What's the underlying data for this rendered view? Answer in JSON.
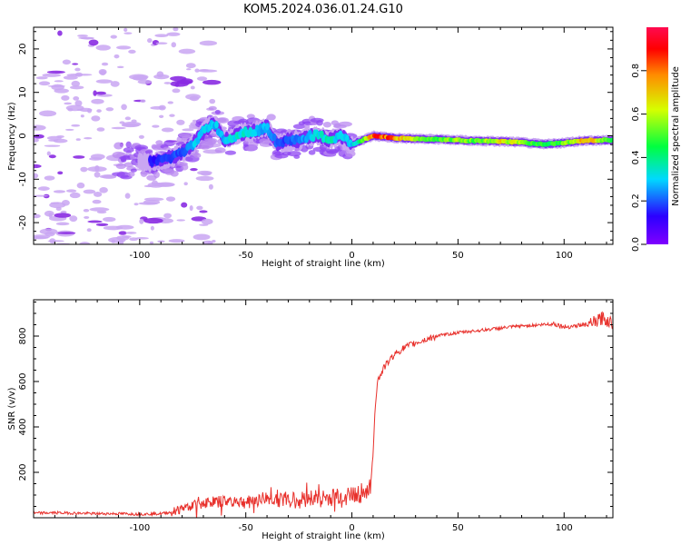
{
  "title": "KOM5.2024.036.01.24.G10",
  "chart_data": [
    {
      "type": "heatmap",
      "xlabel": "Height of straight line (km)",
      "ylabel": "Frequency (Hz)",
      "xlim": [
        -150,
        123
      ],
      "ylim": [
        -25,
        25
      ],
      "x_ticks": [
        -100,
        -50,
        0,
        50,
        100
      ],
      "y_ticks": [
        -20,
        -10,
        0,
        10,
        20
      ],
      "colorbar": {
        "label": "Normalized spectral amplitude",
        "range": [
          0,
          1
        ],
        "ticks": [
          0.0,
          0.2,
          0.4,
          0.6,
          0.8
        ],
        "colormap": "gist_rainbow_r"
      },
      "ridge": {
        "x": [
          -95,
          -85,
          -80,
          -75,
          -70,
          -65,
          -60,
          -55,
          -50,
          -45,
          -40,
          -35,
          -30,
          -25,
          -20,
          -15,
          -10,
          -5,
          0,
          5,
          10,
          20,
          30,
          40,
          50,
          60,
          70,
          80,
          90,
          100,
          110,
          123
        ],
        "y": [
          -6,
          -5,
          -4,
          -2,
          1,
          3,
          -1,
          0,
          1,
          1,
          2,
          -2,
          -1,
          -1,
          0,
          0,
          -1,
          0,
          -2,
          -1,
          0,
          -0.5,
          -0.7,
          -0.8,
          -1,
          -1.2,
          -1.3,
          -1.5,
          -2,
          -1.6,
          -1.1,
          -1
        ]
      },
      "ridge_amplitude": [
        0.15,
        0.2,
        0.2,
        0.3,
        0.35,
        0.3,
        0.3,
        0.35,
        0.35,
        0.3,
        0.3,
        0.2,
        0.2,
        0.25,
        0.3,
        0.35,
        0.4,
        0.3,
        0.3,
        0.5,
        0.9,
        0.85,
        0.6,
        0.55,
        0.6,
        0.55,
        0.7,
        0.6,
        0.5,
        0.55,
        0.8,
        0.5
      ]
    },
    {
      "type": "line",
      "xlabel": "Height of straight line (km)",
      "ylabel": "SNR (v/v)",
      "xlim": [
        -150,
        123
      ],
      "ylim": [
        0,
        960
      ],
      "x_ticks": [
        -100,
        -50,
        0,
        50,
        100
      ],
      "y_ticks": [
        200,
        400,
        600,
        800
      ],
      "color": "#e8312c",
      "series": [
        {
          "x": [
            -150,
            -140,
            -130,
            -120,
            -110,
            -100,
            -90,
            -85,
            -80,
            -75,
            -70,
            -65,
            -60,
            -55,
            -50,
            -45,
            -40,
            -35,
            -30,
            -25,
            -20,
            -15,
            -10,
            -5,
            0,
            5,
            8,
            9,
            10,
            11,
            12,
            15,
            20,
            25,
            30,
            40,
            50,
            60,
            70,
            80,
            90,
            95,
            100,
            110,
            115,
            118,
            123
          ],
          "y": [
            20,
            22,
            20,
            18,
            18,
            16,
            18,
            25,
            40,
            55,
            65,
            70,
            70,
            75,
            65,
            80,
            85,
            80,
            80,
            75,
            90,
            85,
            85,
            95,
            100,
            110,
            125,
            130,
            300,
            500,
            600,
            660,
            720,
            750,
            770,
            800,
            815,
            825,
            835,
            845,
            850,
            855,
            840,
            850,
            860,
            880,
            855
          ]
        }
      ]
    }
  ]
}
